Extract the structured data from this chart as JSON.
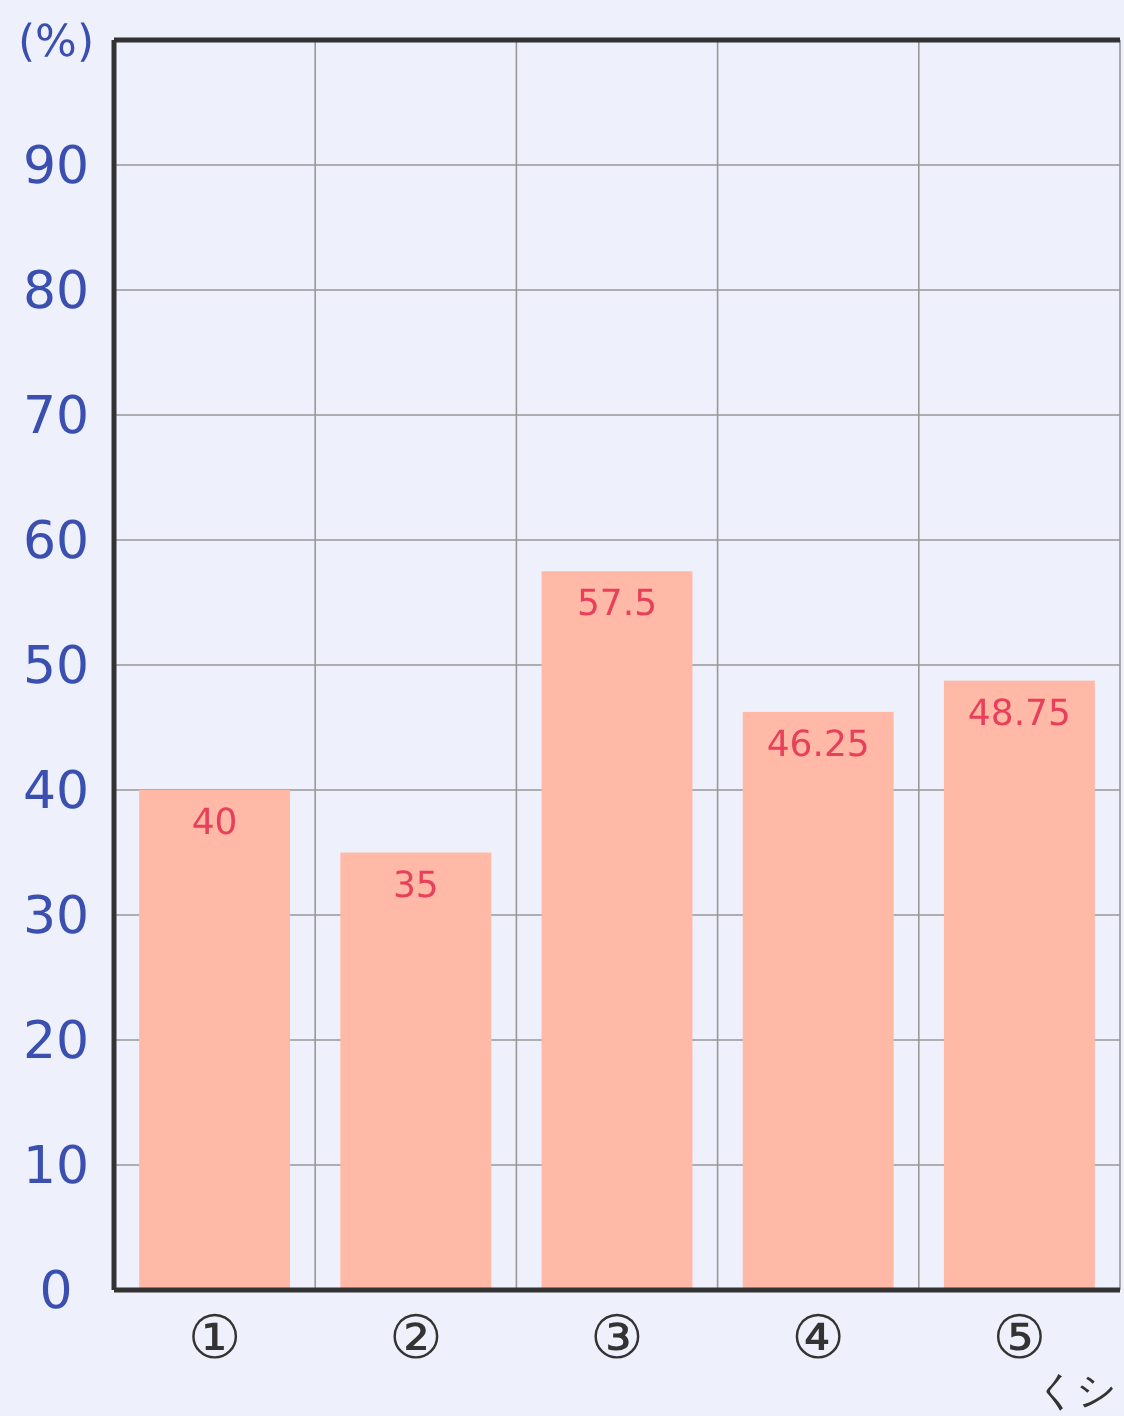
{
  "chart_data": {
    "type": "bar",
    "ylabel": "(%)",
    "xlabel": "くシ",
    "categories": [
      "①",
      "②",
      "③",
      "④",
      "⑤"
    ],
    "values": [
      40,
      35,
      57.5,
      46.25,
      48.75
    ],
    "color": "#ffb9a6",
    "ylim": [
      0,
      100
    ],
    "yticks": [
      0,
      10,
      20,
      30,
      40,
      50,
      60,
      70,
      80,
      90
    ],
    "grid": true,
    "data_labels": true
  }
}
